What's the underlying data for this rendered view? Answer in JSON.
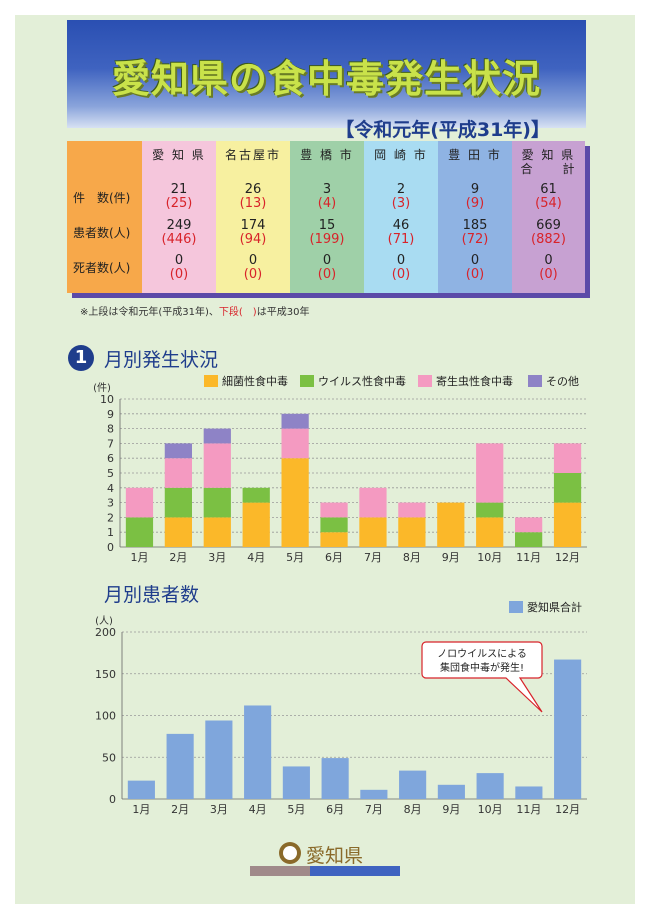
{
  "banner": {
    "title": "愛知県の食中毒発生状況",
    "subtitle": "【令和元年(平成31年)】"
  },
  "table": {
    "row_labels": [
      "件　数(件)",
      "患者数(人)",
      "死者数(人)"
    ],
    "columns": [
      {
        "header": "愛 知 県",
        "color": "#f5c6dc",
        "cases": "21",
        "cases_prev": "(25)",
        "patients": "249",
        "patients_prev": "(446)",
        "deaths": "0",
        "deaths_prev": "(0)"
      },
      {
        "header": "名古屋市",
        "color": "#f7f0a0",
        "cases": "26",
        "cases_prev": "(13)",
        "patients": "174",
        "patients_prev": "(94)",
        "deaths": "0",
        "deaths_prev": "(0)"
      },
      {
        "header": "豊 橋 市",
        "color": "#9fd0a8",
        "cases": "3",
        "cases_prev": "(4)",
        "patients": "15",
        "patients_prev": "(199)",
        "deaths": "0",
        "deaths_prev": "(0)"
      },
      {
        "header": "岡 崎 市",
        "color": "#a9dcf2",
        "cases": "2",
        "cases_prev": "(3)",
        "patients": "46",
        "patients_prev": "(71)",
        "deaths": "0",
        "deaths_prev": "(0)"
      },
      {
        "header": "豊 田 市",
        "color": "#8fb3e3",
        "cases": "9",
        "cases_prev": "(9)",
        "patients": "185",
        "patients_prev": "(72)",
        "deaths": "0",
        "deaths_prev": "(0)"
      },
      {
        "header": "愛 知 県\n合　　計",
        "color": "#c7a1d2",
        "cases": "61",
        "cases_prev": "(54)",
        "patients": "669",
        "patients_prev": "(882)",
        "deaths": "0",
        "deaths_prev": "(0)"
      }
    ],
    "label_color": "#f7a84a"
  },
  "note": {
    "part1": "※上段は令和元年(平成31年)、",
    "part2": "下段(　)",
    "part3": "は平成30年"
  },
  "section1": {
    "number": "1",
    "title": "月別発生状況"
  },
  "section2": {
    "title": "月別患者数"
  },
  "callout": {
    "line1": "ノロウイルスによる",
    "line2": "集団食中毒が発生!"
  },
  "logo": {
    "text": "愛知県"
  },
  "chart_data": [
    {
      "type": "bar",
      "stacked": true,
      "title": "月別発生状況",
      "ylabel": "(件)",
      "ylim": [
        0,
        10
      ],
      "yticks": [
        0,
        1,
        2,
        3,
        4,
        5,
        6,
        7,
        8,
        9,
        10
      ],
      "grid": true,
      "legend_position": "top-right",
      "categories": [
        "1月",
        "2月",
        "3月",
        "4月",
        "5月",
        "6月",
        "7月",
        "8月",
        "9月",
        "10月",
        "11月",
        "12月"
      ],
      "series": [
        {
          "name": "細菌性食中毒",
          "color": "#fbb829",
          "values": [
            0,
            2,
            2,
            3,
            6,
            1,
            2,
            2,
            3,
            2,
            0,
            3
          ]
        },
        {
          "name": "ウイルス性食中毒",
          "color": "#7bc043",
          "values": [
            2,
            2,
            2,
            1,
            0,
            1,
            0,
            0,
            0,
            1,
            1,
            2
          ]
        },
        {
          "name": "寄生虫性食中毒",
          "color": "#f49ac1",
          "values": [
            2,
            2,
            3,
            0,
            2,
            1,
            2,
            1,
            0,
            4,
            1,
            2
          ]
        },
        {
          "name": "その他",
          "color": "#8e83c6",
          "values": [
            0,
            1,
            1,
            0,
            1,
            0,
            0,
            0,
            0,
            0,
            0,
            0
          ]
        }
      ]
    },
    {
      "type": "bar",
      "title": "月別患者数",
      "ylabel": "(人)",
      "ylim": [
        0,
        200
      ],
      "yticks": [
        0,
        50,
        100,
        150,
        200
      ],
      "grid": true,
      "legend_position": "top-right",
      "categories": [
        "1月",
        "2月",
        "3月",
        "4月",
        "5月",
        "6月",
        "7月",
        "8月",
        "9月",
        "10月",
        "11月",
        "12月"
      ],
      "series": [
        {
          "name": "愛知県合計",
          "color": "#7fa6dc",
          "values": [
            22,
            78,
            94,
            112,
            39,
            49,
            11,
            34,
            17,
            31,
            15,
            167
          ]
        }
      ]
    }
  ]
}
